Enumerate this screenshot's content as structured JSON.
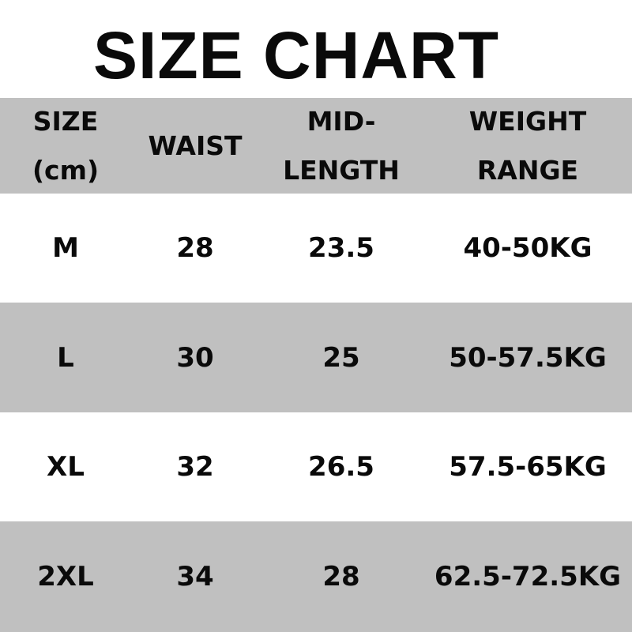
{
  "title": "SIZE CHART",
  "colors": {
    "band": "#c0c0c0",
    "background": "#ffffff",
    "text": "#0a0a0a"
  },
  "headers": [
    [
      "SIZE",
      "(cm)"
    ],
    [
      "WAIST"
    ],
    [
      "MID-",
      "LENGTH"
    ],
    [
      "WEIGHT",
      "RANGE"
    ]
  ],
  "rows": [
    [
      "M",
      "28",
      "23.5",
      "40-50KG"
    ],
    [
      "L",
      "30",
      "25",
      "50-57.5KG"
    ],
    [
      "XL",
      "32",
      "26.5",
      "57.5-65KG"
    ],
    [
      "2XL",
      "34",
      "28",
      "62.5-72.5KG"
    ]
  ]
}
